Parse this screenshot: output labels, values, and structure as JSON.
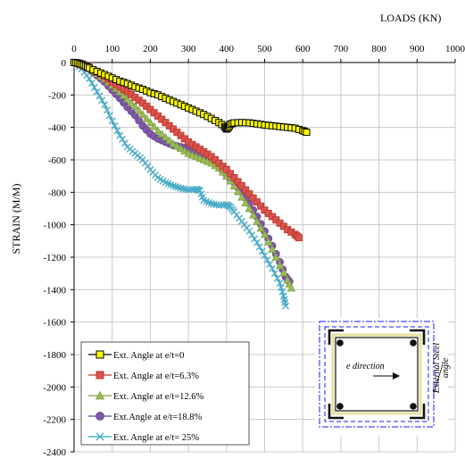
{
  "chart_data": {
    "type": "scatter",
    "xlabel": "LOADS (KN)",
    "ylabel": "STRAIN (M/M)",
    "xlim": [
      0,
      1000
    ],
    "ylim": [
      -2400,
      0
    ],
    "x_ticks": [
      0,
      100,
      200,
      300,
      400,
      500,
      600,
      700,
      800,
      900,
      1000
    ],
    "x_tick_labels": [
      "0",
      "100",
      "200",
      "300",
      "400",
      "500",
      "600",
      "700",
      "800",
      "900",
      "1000"
    ],
    "y_ticks": [
      0,
      -200,
      -400,
      -600,
      -800,
      -1000,
      -1200,
      -1400,
      -1600,
      -1800,
      -2000,
      -2200,
      -2400
    ],
    "grid": true,
    "x_axis_position": "top",
    "legend_position": "bottom-left",
    "series": [
      {
        "name": "Ext. Angle at e/t=0",
        "color": "#ffff00",
        "edge": "#000000",
        "marker": "square",
        "points": [
          [
            0,
            0
          ],
          [
            10,
            -3
          ],
          [
            20,
            -10
          ],
          [
            30,
            -20
          ],
          [
            40,
            -35
          ],
          [
            60,
            -55
          ],
          [
            80,
            -75
          ],
          [
            100,
            -95
          ],
          [
            120,
            -115
          ],
          [
            140,
            -130
          ],
          [
            160,
            -150
          ],
          [
            180,
            -165
          ],
          [
            200,
            -185
          ],
          [
            220,
            -200
          ],
          [
            240,
            -220
          ],
          [
            260,
            -240
          ],
          [
            280,
            -260
          ],
          [
            300,
            -280
          ],
          [
            320,
            -300
          ],
          [
            340,
            -320
          ],
          [
            360,
            -345
          ],
          [
            380,
            -370
          ],
          [
            395,
            -395
          ],
          [
            400,
            -410
          ],
          [
            405,
            -400
          ],
          [
            410,
            -380
          ],
          [
            420,
            -372
          ],
          [
            440,
            -370
          ],
          [
            460,
            -372
          ],
          [
            480,
            -378
          ],
          [
            500,
            -385
          ],
          [
            520,
            -390
          ],
          [
            540,
            -395
          ],
          [
            560,
            -400
          ],
          [
            580,
            -405
          ],
          [
            600,
            -420
          ],
          [
            610,
            -430
          ]
        ]
      },
      {
        "name": "Ext. Angle at e/t=6.3%",
        "color": "#d9534f",
        "edge": "#c0392b",
        "marker": "square",
        "points": [
          [
            0,
            0
          ],
          [
            20,
            -10
          ],
          [
            40,
            -30
          ],
          [
            60,
            -60
          ],
          [
            80,
            -85
          ],
          [
            100,
            -120
          ],
          [
            120,
            -150
          ],
          [
            140,
            -180
          ],
          [
            160,
            -215
          ],
          [
            180,
            -250
          ],
          [
            200,
            -290
          ],
          [
            220,
            -330
          ],
          [
            240,
            -370
          ],
          [
            260,
            -410
          ],
          [
            280,
            -450
          ],
          [
            300,
            -490
          ],
          [
            320,
            -520
          ],
          [
            340,
            -550
          ],
          [
            360,
            -580
          ],
          [
            380,
            -620
          ],
          [
            400,
            -660
          ],
          [
            420,
            -710
          ],
          [
            440,
            -760
          ],
          [
            460,
            -810
          ],
          [
            480,
            -860
          ],
          [
            500,
            -910
          ],
          [
            520,
            -950
          ],
          [
            540,
            -990
          ],
          [
            560,
            -1030
          ],
          [
            580,
            -1060
          ],
          [
            590,
            -1080
          ]
        ]
      },
      {
        "name": "Ext. Angle at e/t=12.6%",
        "color": "#9bbb59",
        "edge": "#7f9f3f",
        "marker": "triangle",
        "points": [
          [
            0,
            0
          ],
          [
            20,
            -15
          ],
          [
            40,
            -35
          ],
          [
            60,
            -70
          ],
          [
            80,
            -100
          ],
          [
            100,
            -140
          ],
          [
            120,
            -180
          ],
          [
            140,
            -225
          ],
          [
            160,
            -270
          ],
          [
            180,
            -320
          ],
          [
            200,
            -370
          ],
          [
            220,
            -420
          ],
          [
            240,
            -460
          ],
          [
            260,
            -500
          ],
          [
            280,
            -530
          ],
          [
            300,
            -560
          ],
          [
            320,
            -580
          ],
          [
            340,
            -600
          ],
          [
            360,
            -620
          ],
          [
            380,
            -650
          ],
          [
            400,
            -700
          ],
          [
            420,
            -760
          ],
          [
            440,
            -830
          ],
          [
            460,
            -900
          ],
          [
            480,
            -980
          ],
          [
            500,
            -1060
          ],
          [
            520,
            -1150
          ],
          [
            540,
            -1250
          ],
          [
            560,
            -1340
          ],
          [
            570,
            -1390
          ]
        ]
      },
      {
        "name": "Ext.Angle at e/t=18.8%",
        "color": "#7e57a8",
        "edge": "#6a4593",
        "marker": "circle",
        "points": [
          [
            0,
            0
          ],
          [
            20,
            -20
          ],
          [
            40,
            -40
          ],
          [
            60,
            -80
          ],
          [
            80,
            -120
          ],
          [
            100,
            -170
          ],
          [
            120,
            -220
          ],
          [
            140,
            -275
          ],
          [
            160,
            -325
          ],
          [
            180,
            -390
          ],
          [
            200,
            -440
          ],
          [
            220,
            -470
          ],
          [
            240,
            -490
          ],
          [
            260,
            -510
          ],
          [
            280,
            -520
          ],
          [
            300,
            -530
          ],
          [
            320,
            -550
          ],
          [
            340,
            -570
          ],
          [
            360,
            -600
          ],
          [
            380,
            -640
          ],
          [
            400,
            -690
          ],
          [
            420,
            -740
          ],
          [
            440,
            -800
          ],
          [
            460,
            -870
          ],
          [
            480,
            -950
          ],
          [
            500,
            -1040
          ],
          [
            520,
            -1130
          ],
          [
            540,
            -1230
          ],
          [
            555,
            -1320
          ],
          [
            565,
            -1350
          ]
        ]
      },
      {
        "name": "Ext. Angle at e/t= 25%",
        "color": "#4bacc6",
        "edge": "#31a0bd",
        "marker": "x",
        "points": [
          [
            0,
            0
          ],
          [
            20,
            -40
          ],
          [
            40,
            -100
          ],
          [
            60,
            -180
          ],
          [
            80,
            -260
          ],
          [
            100,
            -360
          ],
          [
            120,
            -450
          ],
          [
            140,
            -520
          ],
          [
            160,
            -560
          ],
          [
            180,
            -600
          ],
          [
            200,
            -660
          ],
          [
            220,
            -710
          ],
          [
            240,
            -740
          ],
          [
            260,
            -760
          ],
          [
            280,
            -775
          ],
          [
            300,
            -785
          ],
          [
            320,
            -780
          ],
          [
            330,
            -790
          ],
          [
            340,
            -850
          ],
          [
            360,
            -870
          ],
          [
            380,
            -880
          ],
          [
            400,
            -875
          ],
          [
            410,
            -890
          ],
          [
            420,
            -920
          ],
          [
            440,
            -980
          ],
          [
            460,
            -1040
          ],
          [
            480,
            -1110
          ],
          [
            500,
            -1190
          ],
          [
            520,
            -1270
          ],
          [
            540,
            -1360
          ],
          [
            550,
            -1440
          ],
          [
            555,
            -1500
          ]
        ]
      }
    ],
    "inset": {
      "direction_label": "e direction",
      "side_label_line1": "External Steel",
      "side_label_line2": "angle"
    }
  }
}
